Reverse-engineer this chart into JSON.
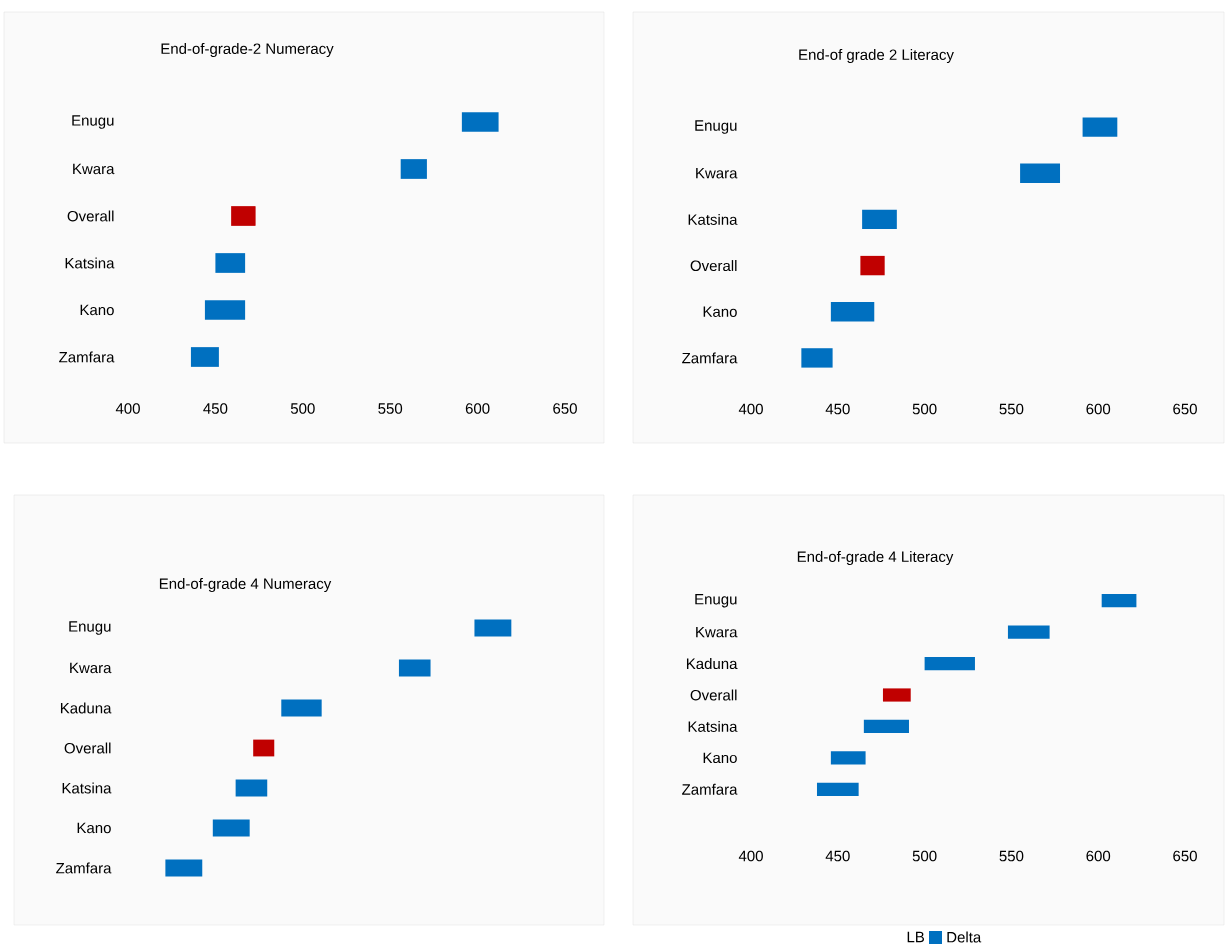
{
  "chart_data": [
    {
      "type": "bar",
      "orientation": "horizontal",
      "title": "End-of-grade-2 Numeracy",
      "categories": [
        "Enugu",
        "Kwara",
        "Overall",
        "Katsina",
        "Kano",
        "Zamfara"
      ],
      "base": [
        591,
        556,
        459,
        450,
        444,
        436
      ],
      "values": [
        21,
        15,
        14,
        17,
        23,
        16
      ],
      "colors": [
        "#0070c0",
        "#0070c0",
        "#c00000",
        "#0070c0",
        "#0070c0",
        "#0070c0"
      ],
      "xlim": [
        400,
        650
      ],
      "xticks": [
        400,
        450,
        500,
        550,
        600,
        650
      ]
    },
    {
      "type": "bar",
      "orientation": "horizontal",
      "title": "End-of grade 2 Literacy",
      "categories": [
        "Enugu",
        "Kwara",
        "Katsina",
        "Overall",
        "Kano",
        "Zamfara"
      ],
      "base": [
        591,
        555,
        464,
        463,
        446,
        429
      ],
      "values": [
        20,
        23,
        20,
        14,
        25,
        18
      ],
      "colors": [
        "#0070c0",
        "#0070c0",
        "#0070c0",
        "#c00000",
        "#0070c0",
        "#0070c0"
      ],
      "xlim": [
        400,
        650
      ],
      "xticks": [
        400,
        450,
        500,
        550,
        600,
        650
      ]
    },
    {
      "type": "bar",
      "orientation": "horizontal",
      "title": "End-of-grade 4 Numeracy",
      "categories": [
        "Enugu",
        "Kwara",
        "Kaduna",
        "Overall",
        "Katsina",
        "Kano",
        "Zamfara"
      ],
      "base": [
        599,
        556,
        489,
        473,
        463,
        450,
        423
      ],
      "values": [
        21,
        18,
        23,
        12,
        18,
        21,
        21
      ],
      "colors": [
        "#0070c0",
        "#0070c0",
        "#0070c0",
        "#c00000",
        "#0070c0",
        "#0070c0",
        "#0070c0"
      ],
      "xlim": [
        400,
        650
      ],
      "xticks": [
        400,
        450,
        500,
        550,
        600,
        650
      ],
      "tick_labels": "y"
    },
    {
      "type": "bar",
      "orientation": "horizontal",
      "title": "End-of-grade 4 Literacy",
      "categories": [
        "Enugu",
        "Kwara",
        "Kaduna",
        "Overall",
        "Katsina",
        "Kano",
        "Zamfara"
      ],
      "series": [
        {
          "name": "Delta",
          "color": "#0070c0",
          "base": [
            602,
            548,
            500,
            476,
            465,
            446,
            438
          ],
          "values": [
            20,
            24,
            29,
            16,
            26,
            20,
            24
          ],
          "colors": [
            "#0070c0",
            "#0070c0",
            "#0070c0",
            "#c00000",
            "#0070c0",
            "#0070c0",
            "#0070c0"
          ]
        }
      ],
      "legend": "bottom",
      "legend_title": "LB",
      "xlim": [
        400,
        650
      ],
      "xticks": [
        400,
        450,
        500,
        550,
        600,
        650
      ]
    }
  ]
}
